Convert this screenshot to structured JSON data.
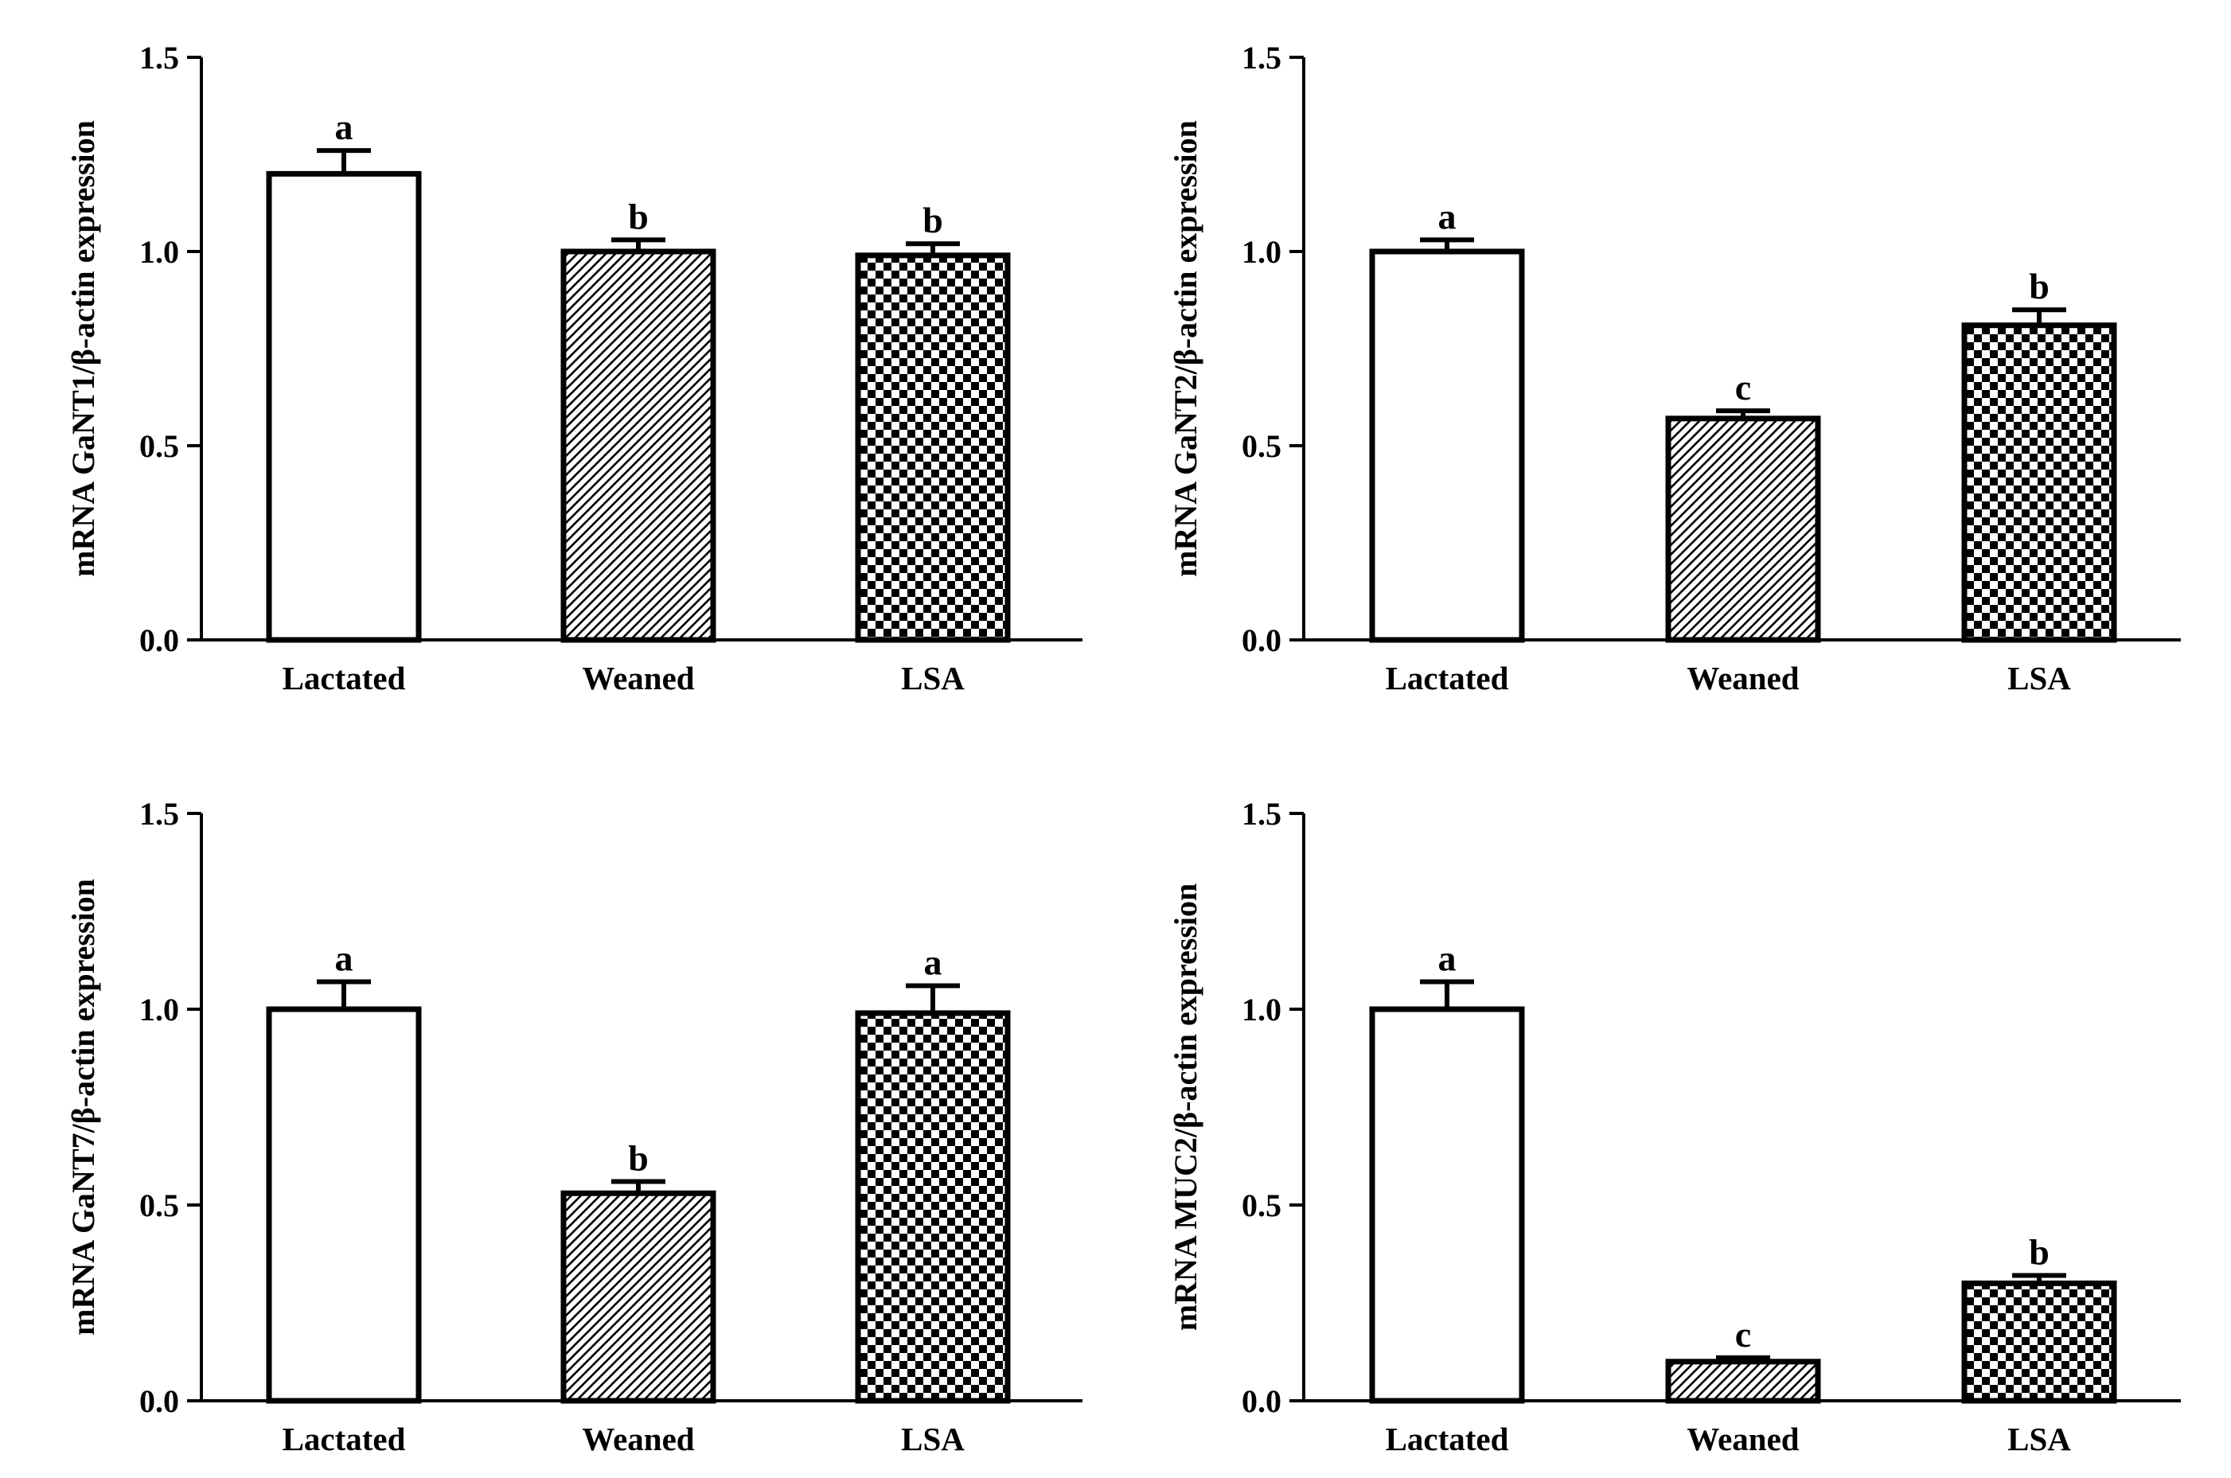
{
  "figure": {
    "layout": "2x2 grid of bar charts"
  },
  "colors": {
    "ink": "#000000",
    "bar_white": "#ffffff",
    "background": "#ffffff"
  },
  "chart_data": [
    {
      "id": "ganti1",
      "type": "bar",
      "title": "",
      "xlabel": "",
      "ylabel": "mRNA GaNT1/β-actin expression",
      "ylim": [
        0,
        1.5
      ],
      "yticks": [
        "0.0",
        "0.5",
        "1.0",
        "1.5"
      ],
      "categories": [
        "Lactated",
        "Weaned",
        "LSA"
      ],
      "values": [
        1.2,
        1.0,
        0.99
      ],
      "errors": [
        0.06,
        0.03,
        0.03
      ],
      "letters": [
        "a",
        "b",
        "b"
      ],
      "patterns": [
        "none",
        "diagonal-hatch",
        "checker"
      ]
    },
    {
      "id": "ganti2",
      "type": "bar",
      "title": "",
      "xlabel": "",
      "ylabel": "mRNA GaNT2/β-actin expression",
      "ylim": [
        0,
        1.5
      ],
      "yticks": [
        "0.0",
        "0.5",
        "1.0",
        "1.5"
      ],
      "categories": [
        "Lactated",
        "Weaned",
        "LSA"
      ],
      "values": [
        1.0,
        0.57,
        0.81
      ],
      "errors": [
        0.03,
        0.02,
        0.04
      ],
      "letters": [
        "a",
        "c",
        "b"
      ],
      "patterns": [
        "none",
        "diagonal-hatch",
        "checker"
      ]
    },
    {
      "id": "ganti7",
      "type": "bar",
      "title": "",
      "xlabel": "",
      "ylabel": "mRNA GaNT7/β-actin expression",
      "ylim": [
        0,
        1.5
      ],
      "yticks": [
        "0.0",
        "0.5",
        "1.0",
        "1.5"
      ],
      "categories": [
        "Lactated",
        "Weaned",
        "LSA"
      ],
      "values": [
        1.0,
        0.53,
        0.99
      ],
      "errors": [
        0.07,
        0.03,
        0.07
      ],
      "letters": [
        "a",
        "b",
        "a"
      ],
      "patterns": [
        "none",
        "diagonal-hatch",
        "checker"
      ]
    },
    {
      "id": "muc2",
      "type": "bar",
      "title": "",
      "xlabel": "",
      "ylabel": "mRNA MUC2/β-actin expression",
      "ylim": [
        0,
        1.5
      ],
      "yticks": [
        "0.0",
        "0.5",
        "1.0",
        "1.5"
      ],
      "categories": [
        "Lactated",
        "Weaned",
        "LSA"
      ],
      "values": [
        1.0,
        0.1,
        0.3
      ],
      "errors": [
        0.07,
        0.01,
        0.02
      ],
      "letters": [
        "a",
        "c",
        "b"
      ],
      "patterns": [
        "none",
        "diagonal-hatch",
        "checker"
      ]
    }
  ]
}
